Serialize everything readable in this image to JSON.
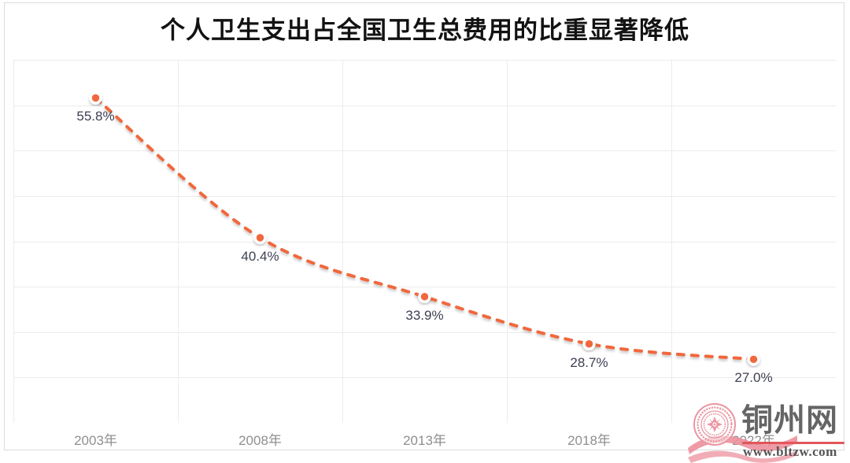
{
  "header": {
    "title": "个人卫生支出占全国卫生总费用的比重显著降低"
  },
  "chart_data": {
    "type": "line",
    "title": "个人卫生支出占全国卫生总费用的比重显著降低",
    "categories": [
      "2003年",
      "2008年",
      "2013年",
      "2018年",
      "2022年"
    ],
    "values": [
      55.8,
      40.4,
      33.9,
      28.7,
      27.0
    ],
    "point_labels": [
      "55.8%",
      "40.4%",
      "33.9%",
      "28.7%",
      "27.0%"
    ],
    "ylabel": "",
    "xlabel": "",
    "ylim": [
      20,
      60
    ],
    "y_gridline_step": 5,
    "grid": true,
    "legend_position": "none",
    "line_style": "dashed",
    "line_color": "#f0683c",
    "marker_fill": "#f0683c",
    "marker_ring": "#ffffff",
    "point_label_color": "#3d4053",
    "axis_label_color": "#8f8f8f",
    "gridline_color": "#ececec"
  },
  "watermark": {
    "site_name": "铜州网",
    "site_url": "www.bltzw.com",
    "seal_color": "#e9929e",
    "underline_color": "#e25055",
    "text_color": "#5f5f5f"
  }
}
